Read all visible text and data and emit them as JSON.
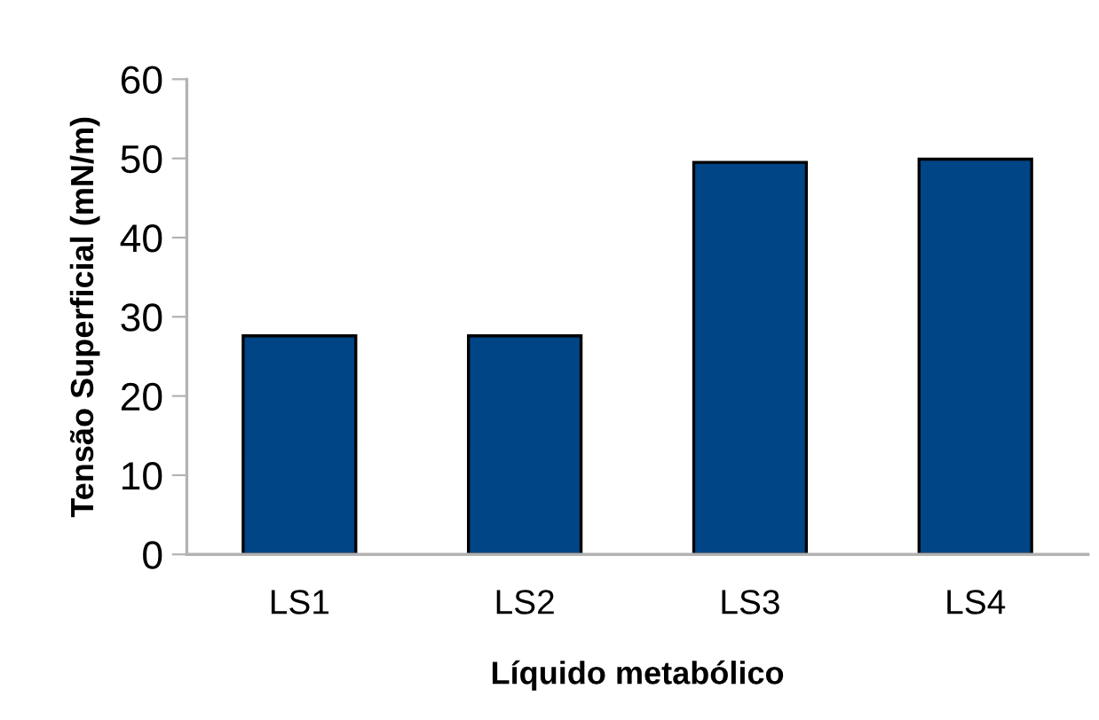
{
  "chart_data": {
    "type": "bar",
    "xlabel": "Líquido metabólico",
    "ylabel": "Tensão Superficial (mN/m)",
    "categories": [
      "LS1",
      "LS2",
      "LS3",
      "LS4"
    ],
    "values": [
      27.6,
      27.6,
      49.5,
      49.9
    ],
    "color": "#004586",
    "ylim": [
      0,
      60
    ],
    "yticks": [
      0,
      10,
      20,
      30,
      40,
      50,
      60
    ],
    "grid": false,
    "legend": false
  }
}
